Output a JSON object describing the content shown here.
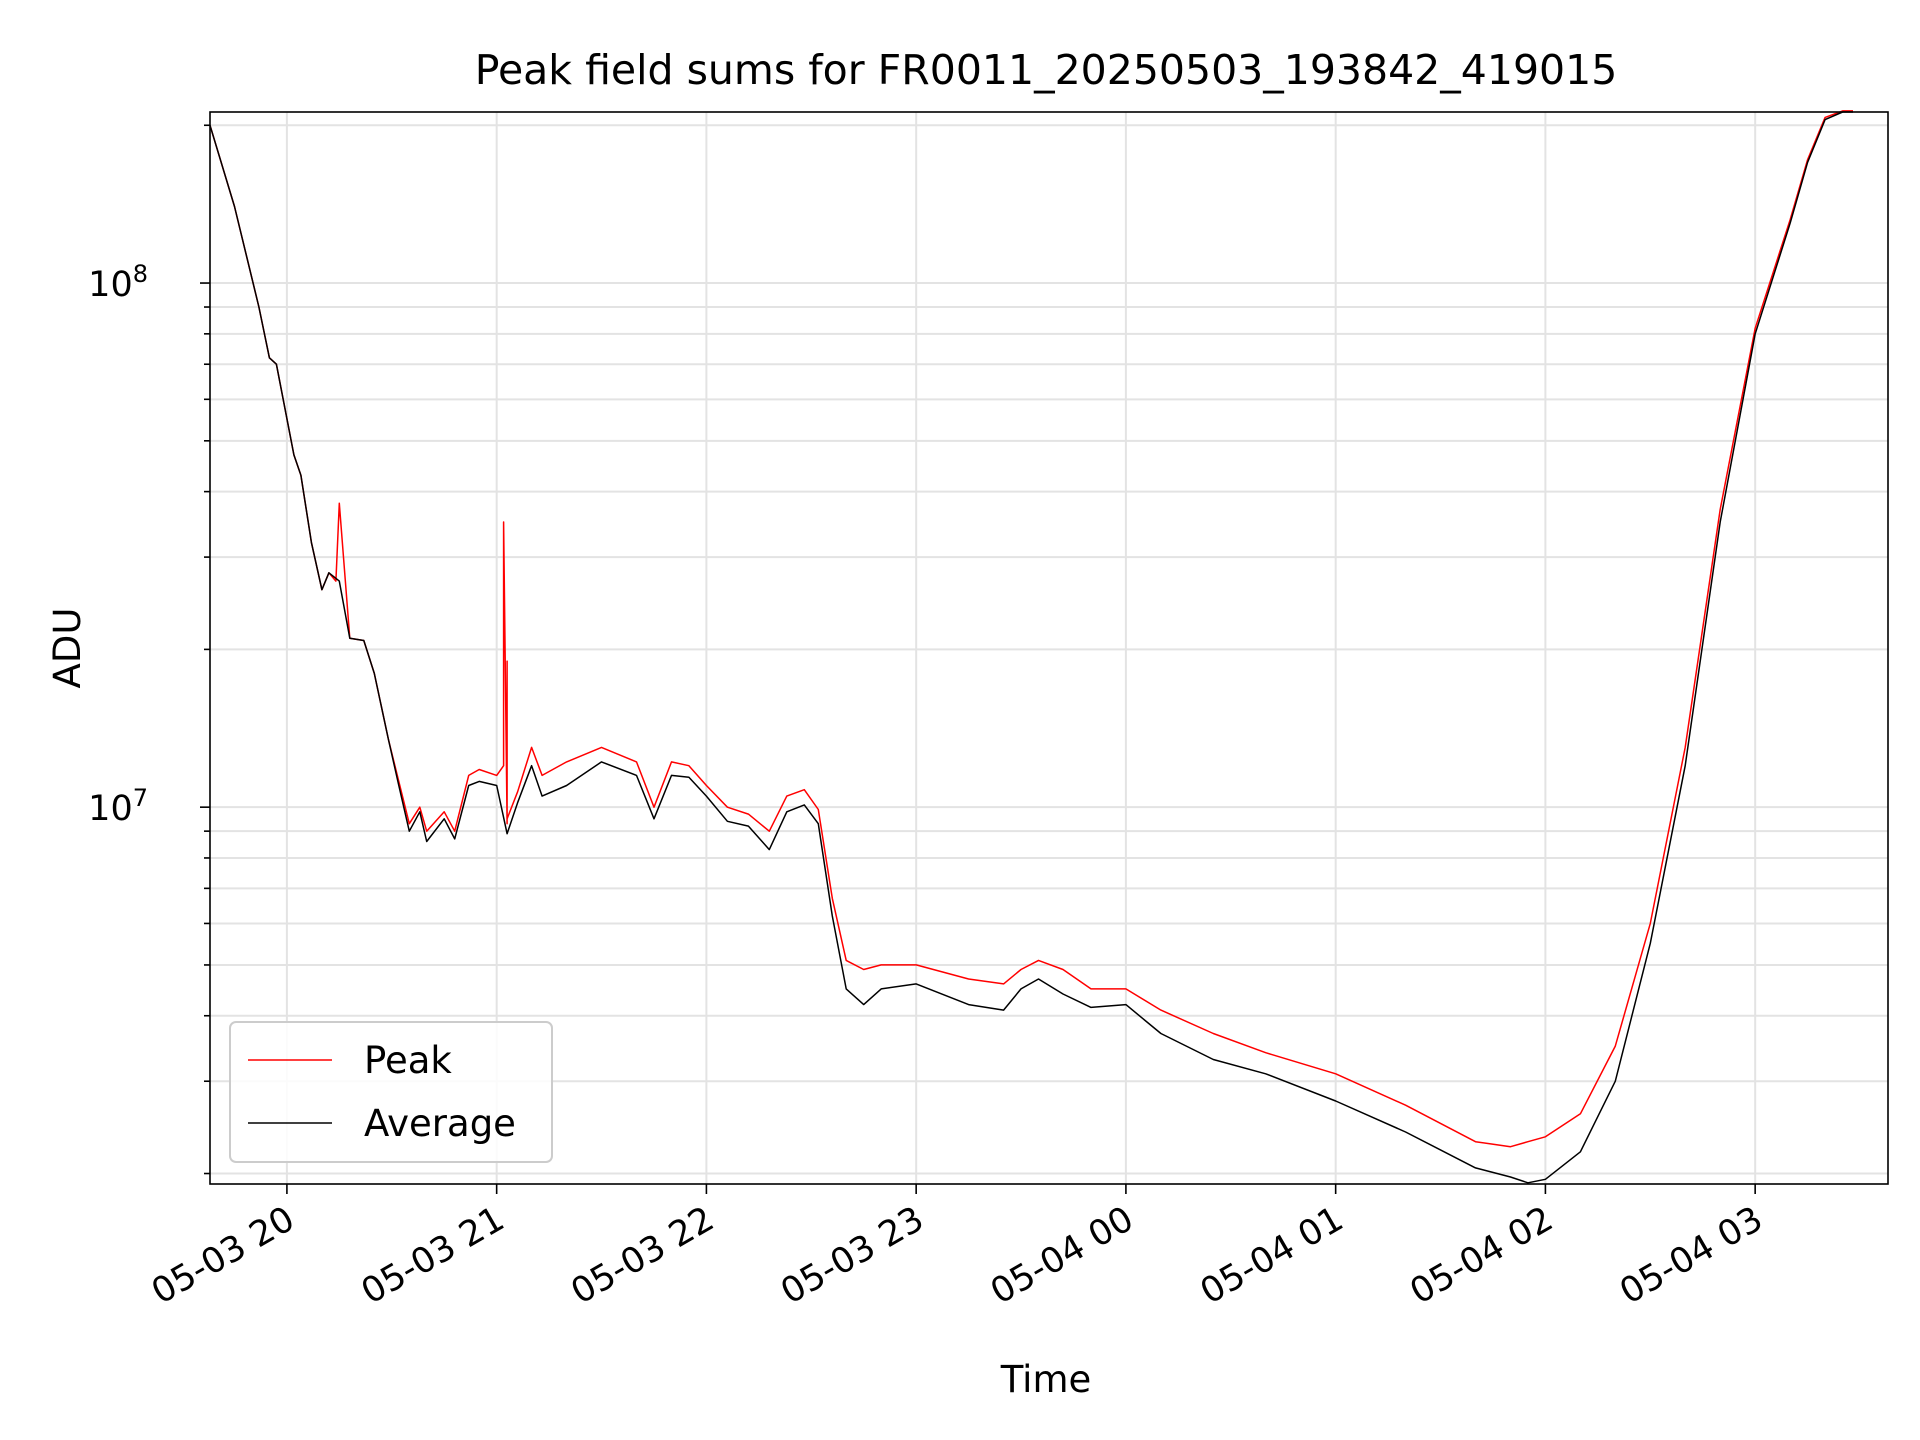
{
  "chart_data": {
    "type": "line",
    "title": "Peak field sums for FR0011_20250503_193842_419015",
    "xlabel": "Time",
    "ylabel": "ADU",
    "yscale": "log",
    "ylim": [
      1910000,
      212000000
    ],
    "xlim": [
      "2025-05-03 19:38",
      "2025-05-04 03:38"
    ],
    "x_ticks": [
      "05-03 20",
      "05-03 21",
      "05-03 22",
      "05-03 23",
      "05-04 00",
      "05-04 01",
      "05-04 02",
      "05-04 03"
    ],
    "y_ticks": [
      {
        "base": "10",
        "exp": "7"
      },
      {
        "base": "10",
        "exp": "8"
      }
    ],
    "grid": true,
    "legend_position": "lower-left",
    "colors": {
      "peak": "#ff0000",
      "average": "#000000"
    },
    "series": [
      {
        "name": "Average",
        "x": [
          "2025-05-03 19:38",
          "2025-05-03 19:45",
          "2025-05-03 19:52",
          "2025-05-03 19:55",
          "2025-05-03 19:57",
          "2025-05-03 20:02",
          "2025-05-03 20:04",
          "2025-05-03 20:07",
          "2025-05-03 20:10",
          "2025-05-03 20:12",
          "2025-05-03 20:15",
          "2025-05-03 20:18",
          "2025-05-03 20:22",
          "2025-05-03 20:25",
          "2025-05-03 20:29",
          "2025-05-03 20:32",
          "2025-05-03 20:35",
          "2025-05-03 20:38",
          "2025-05-03 20:40",
          "2025-05-03 20:45",
          "2025-05-03 20:48",
          "2025-05-03 20:52",
          "2025-05-03 20:55",
          "2025-05-03 21:00",
          "2025-05-03 21:03",
          "2025-05-03 21:06",
          "2025-05-03 21:10",
          "2025-05-03 21:13",
          "2025-05-03 21:20",
          "2025-05-03 21:30",
          "2025-05-03 21:40",
          "2025-05-03 21:45",
          "2025-05-03 21:50",
          "2025-05-03 21:55",
          "2025-05-03 22:00",
          "2025-05-03 22:06",
          "2025-05-03 22:12",
          "2025-05-03 22:18",
          "2025-05-03 22:23",
          "2025-05-03 22:28",
          "2025-05-03 22:32",
          "2025-05-03 22:36",
          "2025-05-03 22:40",
          "2025-05-03 22:45",
          "2025-05-03 22:50",
          "2025-05-03 23:00",
          "2025-05-03 23:15",
          "2025-05-03 23:25",
          "2025-05-03 23:30",
          "2025-05-03 23:35",
          "2025-05-03 23:42",
          "2025-05-03 23:50",
          "2025-05-04 00:00",
          "2025-05-04 00:10",
          "2025-05-04 00:25",
          "2025-05-04 00:40",
          "2025-05-04 01:00",
          "2025-05-04 01:20",
          "2025-05-04 01:40",
          "2025-05-04 01:50",
          "2025-05-04 01:55",
          "2025-05-04 02:00",
          "2025-05-04 02:10",
          "2025-05-04 02:20",
          "2025-05-04 02:30",
          "2025-05-04 02:40",
          "2025-05-04 02:50",
          "2025-05-04 03:00",
          "2025-05-04 03:10",
          "2025-05-04 03:15",
          "2025-05-04 03:20",
          "2025-05-04 03:25",
          "2025-05-04 03:28"
        ],
        "values": [
          200000000,
          140000000,
          90000000,
          72000000,
          70000000,
          47000000,
          43000000,
          32000000,
          26000000,
          28000000,
          27000000,
          21000000,
          20800000,
          18000000,
          13500000,
          11000000,
          9000000,
          9800000,
          8600000,
          9500000,
          8700000,
          11000000,
          11200000,
          11000000,
          8900000,
          10200000,
          12000000,
          10500000,
          11000000,
          12200000,
          11500000,
          9500000,
          11500000,
          11400000,
          10500000,
          9400000,
          9200000,
          8300000,
          9800000,
          10100000,
          9300000,
          6200000,
          4500000,
          4200000,
          4500000,
          4600000,
          4200000,
          4100000,
          4500000,
          4700000,
          4400000,
          4150000,
          4200000,
          3700000,
          3300000,
          3100000,
          2750000,
          2400000,
          2050000,
          1970000,
          1920000,
          1950000,
          2200000,
          3000000,
          5500000,
          12000000,
          35000000,
          80000000,
          130000000,
          170000000,
          205000000,
          212000000,
          212000000
        ]
      },
      {
        "name": "Peak",
        "x": [
          "2025-05-03 19:38",
          "2025-05-03 19:45",
          "2025-05-03 19:52",
          "2025-05-03 19:55",
          "2025-05-03 19:57",
          "2025-05-03 20:02",
          "2025-05-03 20:04",
          "2025-05-03 20:07",
          "2025-05-03 20:10",
          "2025-05-03 20:12",
          "2025-05-03 20:14",
          "2025-05-03 20:15",
          "2025-05-03 20:18",
          "2025-05-03 20:22",
          "2025-05-03 20:25",
          "2025-05-03 20:29",
          "2025-05-03 20:32",
          "2025-05-03 20:35",
          "2025-05-03 20:38",
          "2025-05-03 20:40",
          "2025-05-03 20:45",
          "2025-05-03 20:48",
          "2025-05-03 20:52",
          "2025-05-03 20:55",
          "2025-05-03 21:00",
          "2025-05-03 21:02",
          "2025-05-03 21:02",
          "2025-05-03 21:03",
          "2025-05-03 21:03",
          "2025-05-03 21:03",
          "2025-05-03 21:06",
          "2025-05-03 21:10",
          "2025-05-03 21:13",
          "2025-05-03 21:20",
          "2025-05-03 21:30",
          "2025-05-03 21:40",
          "2025-05-03 21:45",
          "2025-05-03 21:50",
          "2025-05-03 21:55",
          "2025-05-03 22:00",
          "2025-05-03 22:06",
          "2025-05-03 22:12",
          "2025-05-03 22:18",
          "2025-05-03 22:23",
          "2025-05-03 22:28",
          "2025-05-03 22:32",
          "2025-05-03 22:36",
          "2025-05-03 22:40",
          "2025-05-03 22:45",
          "2025-05-03 22:50",
          "2025-05-03 23:00",
          "2025-05-03 23:15",
          "2025-05-03 23:25",
          "2025-05-03 23:30",
          "2025-05-03 23:35",
          "2025-05-03 23:42",
          "2025-05-03 23:50",
          "2025-05-04 00:00",
          "2025-05-04 00:10",
          "2025-05-04 00:25",
          "2025-05-04 00:40",
          "2025-05-04 01:00",
          "2025-05-04 01:20",
          "2025-05-04 01:40",
          "2025-05-04 01:50",
          "2025-05-04 01:55",
          "2025-05-04 02:00",
          "2025-05-04 02:10",
          "2025-05-04 02:20",
          "2025-05-04 02:30",
          "2025-05-04 02:40",
          "2025-05-04 02:50",
          "2025-05-04 03:00",
          "2025-05-04 03:10",
          "2025-05-04 03:15",
          "2025-05-04 03:20",
          "2025-05-04 03:25",
          "2025-05-04 03:28"
        ],
        "values": [
          200000000,
          140000000,
          90000000,
          72000000,
          70000000,
          47000000,
          43000000,
          32000000,
          26000000,
          28000000,
          27000000,
          38000000,
          21000000,
          20800000,
          18000000,
          13500000,
          11200000,
          9300000,
          10000000,
          9000000,
          9800000,
          9000000,
          11500000,
          11800000,
          11500000,
          12000000,
          35000000,
          9300000,
          19000000,
          9500000,
          10700000,
          13000000,
          11500000,
          12200000,
          13000000,
          12200000,
          10000000,
          12200000,
          12000000,
          11000000,
          10000000,
          9700000,
          9000000,
          10500000,
          10800000,
          9900000,
          6700000,
          5100000,
          4900000,
          5000000,
          5000000,
          4700000,
          4600000,
          4900000,
          5100000,
          4900000,
          4500000,
          4500000,
          4100000,
          3700000,
          3400000,
          3100000,
          2700000,
          2300000,
          2250000,
          2300000,
          2350000,
          2600000,
          3500000,
          6000000,
          13000000,
          37000000,
          82000000,
          132000000,
          172000000,
          207000000,
          213000000,
          213000000
        ]
      }
    ]
  }
}
